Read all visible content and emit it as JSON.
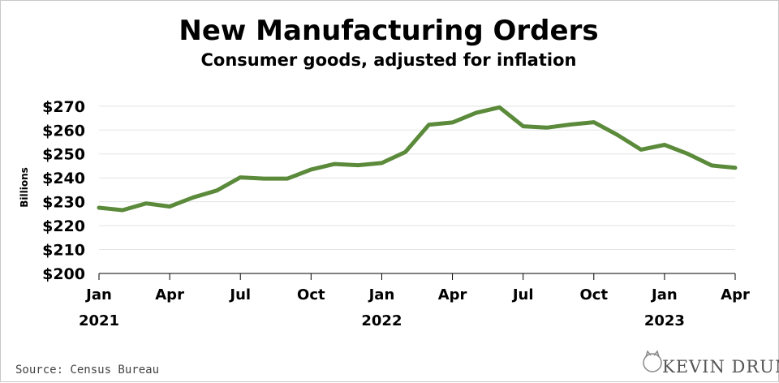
{
  "chart_data": {
    "type": "line",
    "title": "New Manufacturing Orders",
    "subtitle": "Consumer goods, adjusted for inflation",
    "ylabel": "Billions",
    "xlabel": "",
    "ylim": [
      200,
      273
    ],
    "yticks": [
      {
        "value": 200,
        "label": "$200"
      },
      {
        "value": 210,
        "label": "$210"
      },
      {
        "value": 220,
        "label": "$220"
      },
      {
        "value": 230,
        "label": "$230"
      },
      {
        "value": 240,
        "label": "$240"
      },
      {
        "value": 250,
        "label": "$250"
      },
      {
        "value": 260,
        "label": "$260"
      },
      {
        "value": 270,
        "label": "$270"
      }
    ],
    "xticks": [
      {
        "index": 0,
        "label": "Jan",
        "year": "2021"
      },
      {
        "index": 3,
        "label": "Apr",
        "year": ""
      },
      {
        "index": 6,
        "label": "Jul",
        "year": ""
      },
      {
        "index": 9,
        "label": "Oct",
        "year": ""
      },
      {
        "index": 12,
        "label": "Jan",
        "year": "2022"
      },
      {
        "index": 15,
        "label": "Apr",
        "year": ""
      },
      {
        "index": 18,
        "label": "Jul",
        "year": ""
      },
      {
        "index": 21,
        "label": "Oct",
        "year": ""
      },
      {
        "index": 24,
        "label": "Jan",
        "year": "2023"
      },
      {
        "index": 27,
        "label": "Apr",
        "year": ""
      }
    ],
    "categories": [
      "Jan 2021",
      "Feb 2021",
      "Mar 2021",
      "Apr 2021",
      "May 2021",
      "Jun 2021",
      "Jul 2021",
      "Aug 2021",
      "Sep 2021",
      "Oct 2021",
      "Nov 2021",
      "Dec 2021",
      "Jan 2022",
      "Feb 2022",
      "Mar 2022",
      "Apr 2022",
      "May 2022",
      "Jun 2022",
      "Jul 2022",
      "Aug 2022",
      "Sep 2022",
      "Oct 2022",
      "Nov 2022",
      "Dec 2022",
      "Jan 2023",
      "Feb 2023",
      "Mar 2023",
      "Apr 2023"
    ],
    "series": [
      {
        "values": [
          227.5,
          226.5,
          229.3,
          228.0,
          231.8,
          234.7,
          240.2,
          239.7,
          239.7,
          243.5,
          245.8,
          245.3,
          246.2,
          250.8,
          262.2,
          263.2,
          267.2,
          269.5,
          261.6,
          261.0,
          262.3,
          263.3,
          258.0,
          251.8,
          253.8,
          250.0,
          245.2,
          244.2
        ],
        "color": "#5a8a3a"
      }
    ],
    "grid": true
  },
  "source": "Source: Census Bureau",
  "logo": {
    "text": "KEVIN DRUM",
    "icon": "cat-icon"
  }
}
